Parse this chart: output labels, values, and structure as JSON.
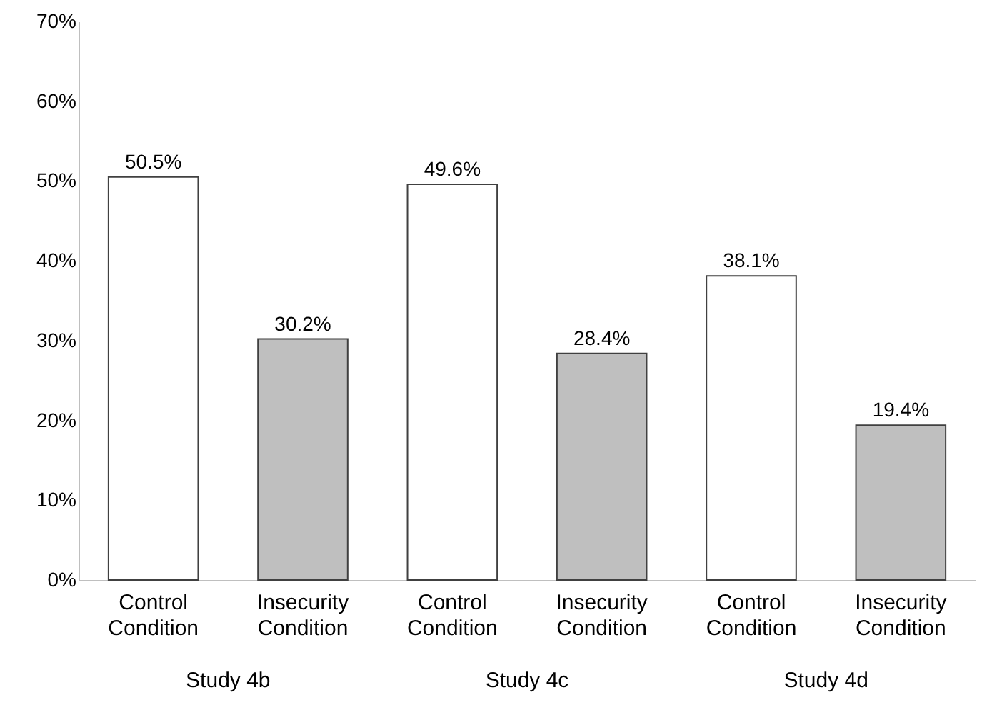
{
  "chart_data": {
    "type": "bar",
    "categories": [
      "Study 4b",
      "Study 4c",
      "Study 4d"
    ],
    "series": [
      {
        "name": "Control Condition",
        "color": "#ffffff",
        "values": [
          50.5,
          49.6,
          38.1
        ],
        "value_labels": [
          "50.5%",
          "49.6%",
          "38.1%"
        ]
      },
      {
        "name": "Insecurity Condition",
        "color": "#bfbfbf",
        "values": [
          30.2,
          28.4,
          19.4
        ],
        "value_labels": [
          "30.2%",
          "28.4%",
          "19.4%"
        ]
      }
    ],
    "ylim": [
      0,
      70
    ],
    "yticks": [
      {
        "value": 0,
        "label": "0%"
      },
      {
        "value": 10,
        "label": "10%"
      },
      {
        "value": 20,
        "label": "20%"
      },
      {
        "value": 30,
        "label": "30%"
      },
      {
        "value": 40,
        "label": "40%"
      },
      {
        "value": 50,
        "label": "50%"
      },
      {
        "value": 60,
        "label": "60%"
      },
      {
        "value": 70,
        "label": "70%"
      }
    ],
    "grid": false
  }
}
